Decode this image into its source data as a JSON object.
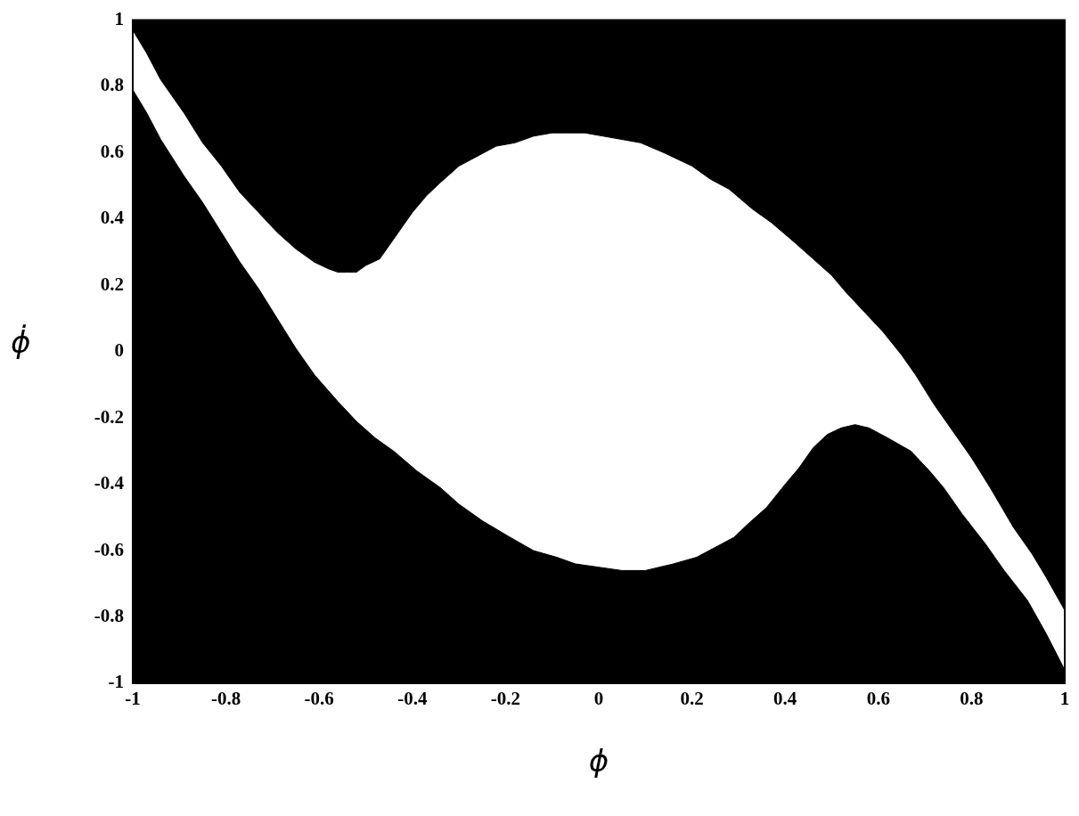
{
  "chart_data": {
    "type": "area",
    "xlabel": "ϕ",
    "ylabel": "ϕ̇",
    "xlim": [
      -1,
      1
    ],
    "ylim": [
      -1,
      1
    ],
    "xticks": [
      -1,
      -0.8,
      -0.6,
      -0.4,
      -0.2,
      0,
      0.2,
      0.4,
      0.6,
      0.8,
      1
    ],
    "yticks": [
      -1,
      -0.8,
      -0.6,
      -0.4,
      -0.2,
      0,
      0.2,
      0.4,
      0.6,
      0.8,
      1
    ],
    "grid": false,
    "legend": false,
    "marker": "none",
    "line_style": "solid",
    "series": [
      {
        "color": "#000000",
        "x": [
          -1,
          -1,
          -0.97,
          -0.94,
          -0.89,
          -0.85,
          -0.81,
          -0.77,
          -0.73,
          -0.69,
          -0.65,
          -0.61,
          -0.56,
          -0.52,
          -0.48,
          -0.44,
          -0.39,
          -0.34,
          -0.3,
          -0.25,
          -0.19,
          -0.14,
          -0.09,
          -0.05,
          0,
          0.05,
          0.1,
          0.16,
          0.21,
          0.25,
          0.29,
          0.32,
          0.36,
          0.4,
          0.43,
          0.46,
          0.49,
          0.52,
          0.55,
          0.58,
          0.62,
          0.67,
          0.71,
          0.74,
          0.78,
          0.83,
          0.87,
          0.92,
          0.96,
          1,
          1
        ],
        "values": [
          -1,
          0.79,
          0.72,
          0.64,
          0.53,
          0.45,
          0.36,
          0.27,
          0.19,
          0.1,
          0.01,
          -0.07,
          -0.15,
          -0.21,
          -0.26,
          -0.3,
          -0.36,
          -0.41,
          -0.46,
          -0.51,
          -0.56,
          -0.6,
          -0.62,
          -0.64,
          -0.65,
          -0.66,
          -0.66,
          -0.64,
          -0.62,
          -0.59,
          -0.56,
          -0.52,
          -0.47,
          -0.4,
          -0.35,
          -0.29,
          -0.25,
          -0.23,
          -0.22,
          -0.23,
          -0.26,
          -0.3,
          -0.36,
          -0.41,
          -0.49,
          -0.58,
          -0.66,
          -0.75,
          -0.85,
          -0.96,
          -1
        ]
      },
      {
        "color": "#000000",
        "x": [
          -1,
          -1,
          -0.97,
          -0.94,
          -0.89,
          -0.85,
          -0.81,
          -0.77,
          -0.73,
          -0.69,
          -0.65,
          -0.61,
          -0.58,
          -0.56,
          -0.54,
          -0.52,
          -0.5,
          -0.47,
          -0.45,
          -0.43,
          -0.4,
          -0.37,
          -0.34,
          -0.3,
          -0.26,
          -0.22,
          -0.18,
          -0.14,
          -0.1,
          -0.07,
          -0.03,
          0.01,
          0.05,
          0.09,
          0.14,
          0.2,
          0.24,
          0.28,
          0.33,
          0.37,
          0.42,
          0.46,
          0.5,
          0.53,
          0.57,
          0.61,
          0.65,
          0.68,
          0.72,
          0.76,
          0.8,
          0.84,
          0.89,
          0.93,
          0.96,
          1,
          1
        ],
        "values": [
          1,
          0.97,
          0.9,
          0.82,
          0.72,
          0.63,
          0.56,
          0.48,
          0.42,
          0.36,
          0.31,
          0.27,
          0.25,
          0.24,
          0.24,
          0.24,
          0.26,
          0.28,
          0.32,
          0.36,
          0.42,
          0.47,
          0.51,
          0.56,
          0.59,
          0.62,
          0.63,
          0.65,
          0.66,
          0.66,
          0.66,
          0.65,
          0.64,
          0.63,
          0.6,
          0.56,
          0.52,
          0.49,
          0.43,
          0.39,
          0.33,
          0.28,
          0.23,
          0.18,
          0.12,
          0.06,
          -0.01,
          -0.07,
          -0.16,
          -0.24,
          -0.32,
          -0.41,
          -0.53,
          -0.61,
          -0.68,
          -0.78,
          1
        ]
      }
    ]
  }
}
